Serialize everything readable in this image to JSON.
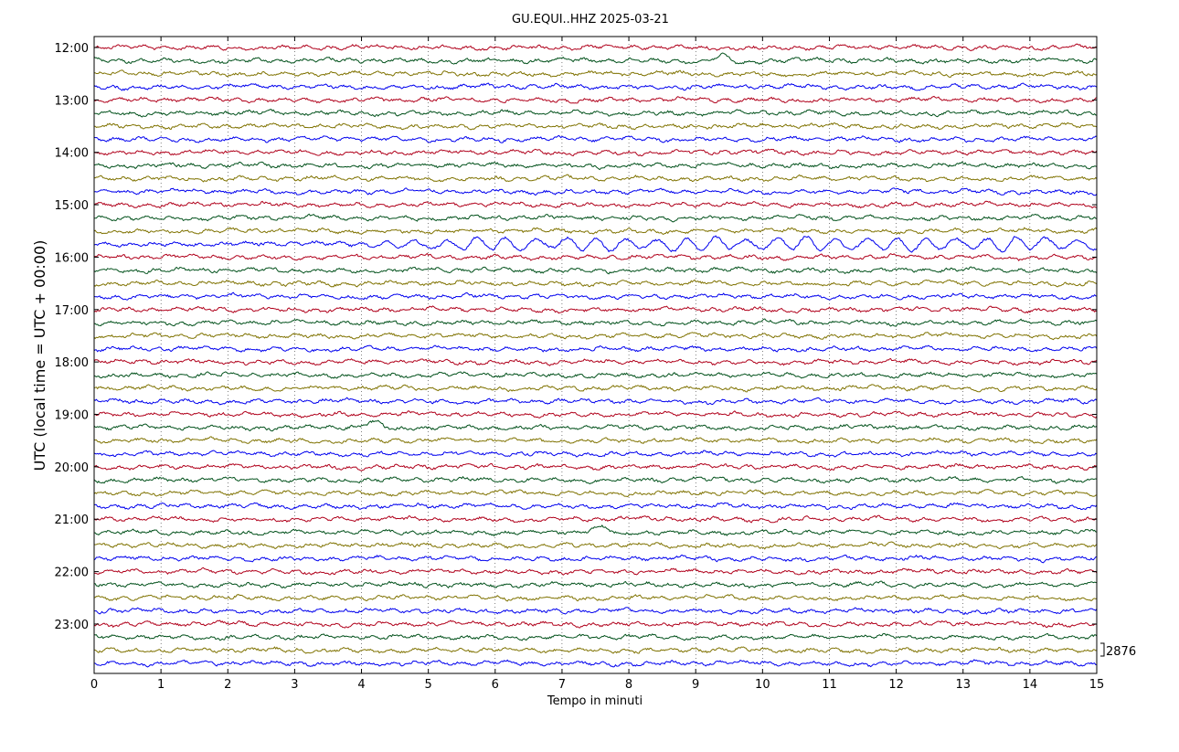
{
  "chart_data": {
    "type": "line",
    "title": "GU.EQUI..HHZ 2025-03-21",
    "xlabel": "Tempo in minuti",
    "ylabel": "UTC (local time = UTC + 00:00)",
    "xlim": [
      0,
      15
    ],
    "x_ticks": [
      "0",
      "1",
      "2",
      "3",
      "4",
      "5",
      "6",
      "7",
      "8",
      "9",
      "10",
      "11",
      "12",
      "13",
      "14",
      "15"
    ],
    "y_ticks": [
      "12:00",
      "13:00",
      "14:00",
      "15:00",
      "16:00",
      "17:00",
      "18:00",
      "19:00",
      "20:00",
      "21:00",
      "22:00",
      "23:00"
    ],
    "grid": true,
    "trace_count": 48,
    "trace_interval_minutes": 15,
    "first_trace_start": "12:00",
    "trace_colors": [
      "#b0001b",
      "#00501a",
      "#7f7200",
      "#0000ee"
    ],
    "scale_label": "2876",
    "notable_events": [
      {
        "trace_start": "15:45",
        "from_minute": 3.8,
        "to_minute": 15,
        "description_amplitude": "large"
      },
      {
        "trace_start": "12:15",
        "minute": 9.4
      },
      {
        "trace_start": "19:15",
        "minute": 4.2
      },
      {
        "trace_start": "21:15",
        "minute": 7.6
      }
    ]
  }
}
